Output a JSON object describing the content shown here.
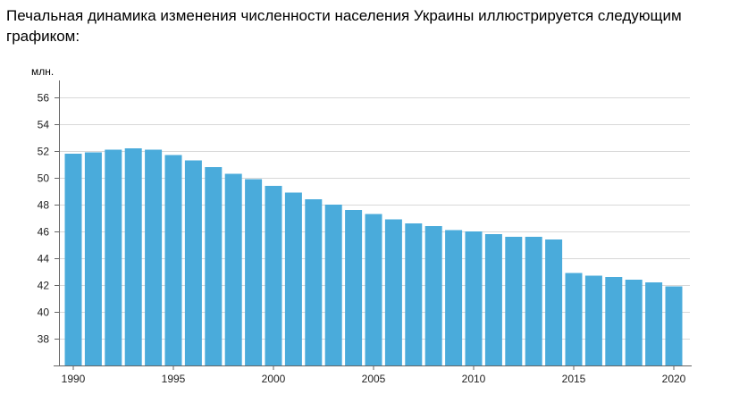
{
  "intro_text": "Печальная динамика изменения численности населения Украины иллюстрируется следующим графиком:",
  "chart_data": {
    "type": "bar",
    "ylabel": "млн.",
    "ylim": [
      36,
      57
    ],
    "yticks": [
      38,
      40,
      42,
      44,
      46,
      48,
      50,
      52,
      54,
      56
    ],
    "xticks": [
      1990,
      1995,
      2000,
      2005,
      2010,
      2015,
      2020
    ],
    "grid": true,
    "categories": [
      1990,
      1991,
      1992,
      1993,
      1994,
      1995,
      1996,
      1997,
      1998,
      1999,
      2000,
      2001,
      2002,
      2003,
      2004,
      2005,
      2006,
      2007,
      2008,
      2009,
      2010,
      2011,
      2012,
      2013,
      2014,
      2015,
      2016,
      2017,
      2018,
      2019,
      2020
    ],
    "values": [
      51.8,
      51.9,
      52.1,
      52.2,
      52.1,
      51.7,
      51.3,
      50.8,
      50.3,
      49.9,
      49.4,
      48.9,
      48.4,
      48.0,
      47.6,
      47.3,
      46.9,
      46.6,
      46.4,
      46.1,
      46.0,
      45.8,
      45.6,
      45.6,
      45.4,
      42.9,
      42.7,
      42.6,
      42.4,
      42.2,
      41.9
    ],
    "colors": {
      "bar": "#4aabdb",
      "grid": "#d8d8d8",
      "axis": "#666666",
      "text": "#222222"
    }
  }
}
